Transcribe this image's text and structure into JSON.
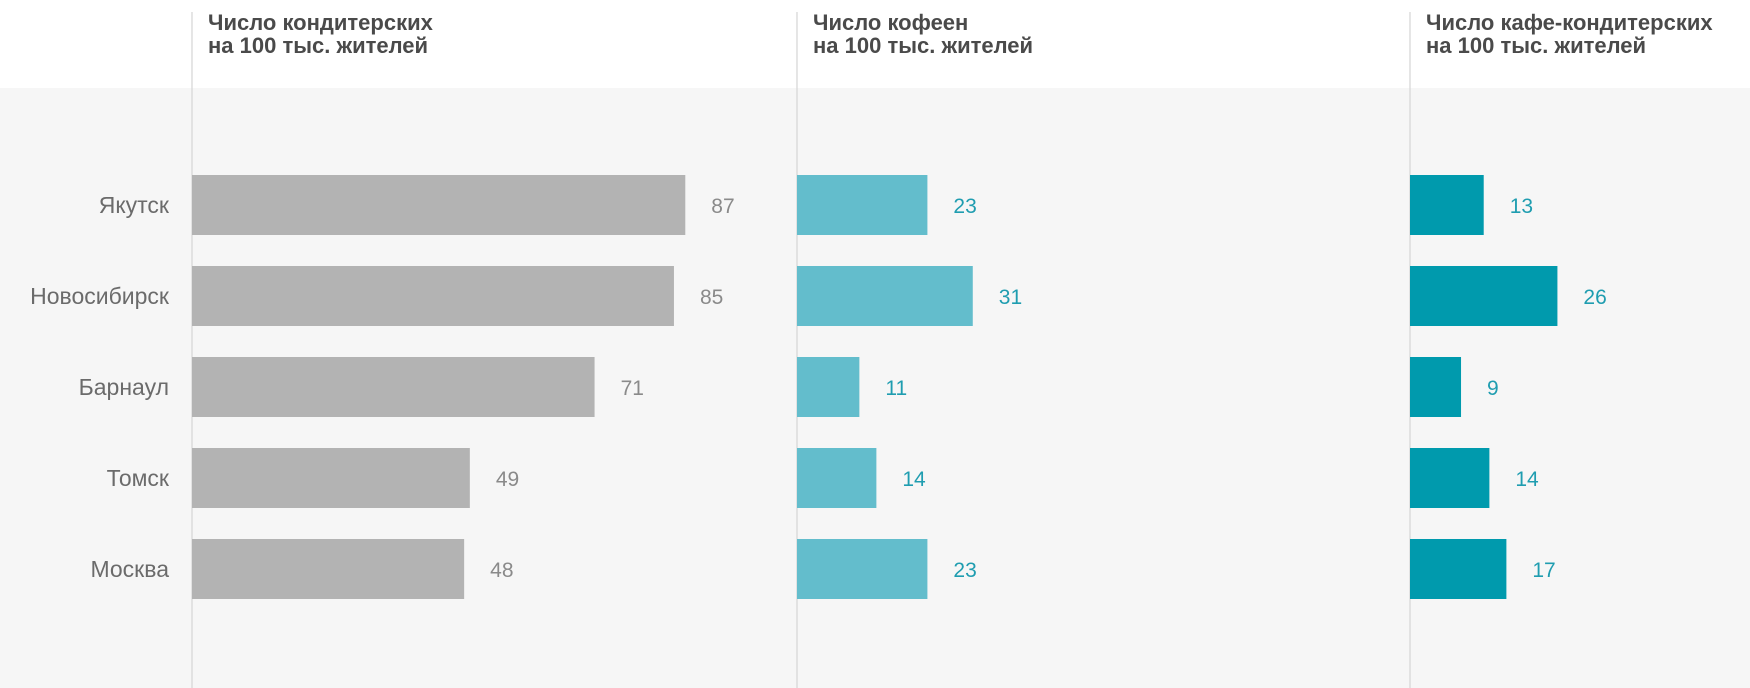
{
  "colors": {
    "background": "#ffffff",
    "plot_background": "#f6f6f6",
    "axis_line": "#d4d4d4",
    "title": "#4a4a4a",
    "category_label": "#6b6b6b"
  },
  "chart_data": {
    "type": "bar",
    "orientation": "horizontal",
    "categories": [
      "Якутск",
      "Новосибирск",
      "Барнаул",
      "Томск",
      "Москва"
    ],
    "grid": false,
    "legend": "none",
    "panels": [
      {
        "title_lines": [
          "Число кондитерских",
          "на 100 тыс. жителей"
        ],
        "values": [
          87,
          85,
          71,
          49,
          48
        ],
        "bar_color": "#b3b3b3",
        "label_color": "#8a8a8a"
      },
      {
        "title_lines": [
          "Число кофеен",
          "на 100 тыс. жителей"
        ],
        "values": [
          23,
          31,
          11,
          14,
          23
        ],
        "bar_color": "#63bdcc",
        "label_color": "#1f9db0"
      },
      {
        "title_lines": [
          "Число кафе-кондитерских",
          "на 100 тыс. жителей"
        ],
        "values": [
          13,
          26,
          9,
          14,
          17
        ],
        "bar_color": "#009aad",
        "label_color": "#1f9db0"
      }
    ]
  }
}
